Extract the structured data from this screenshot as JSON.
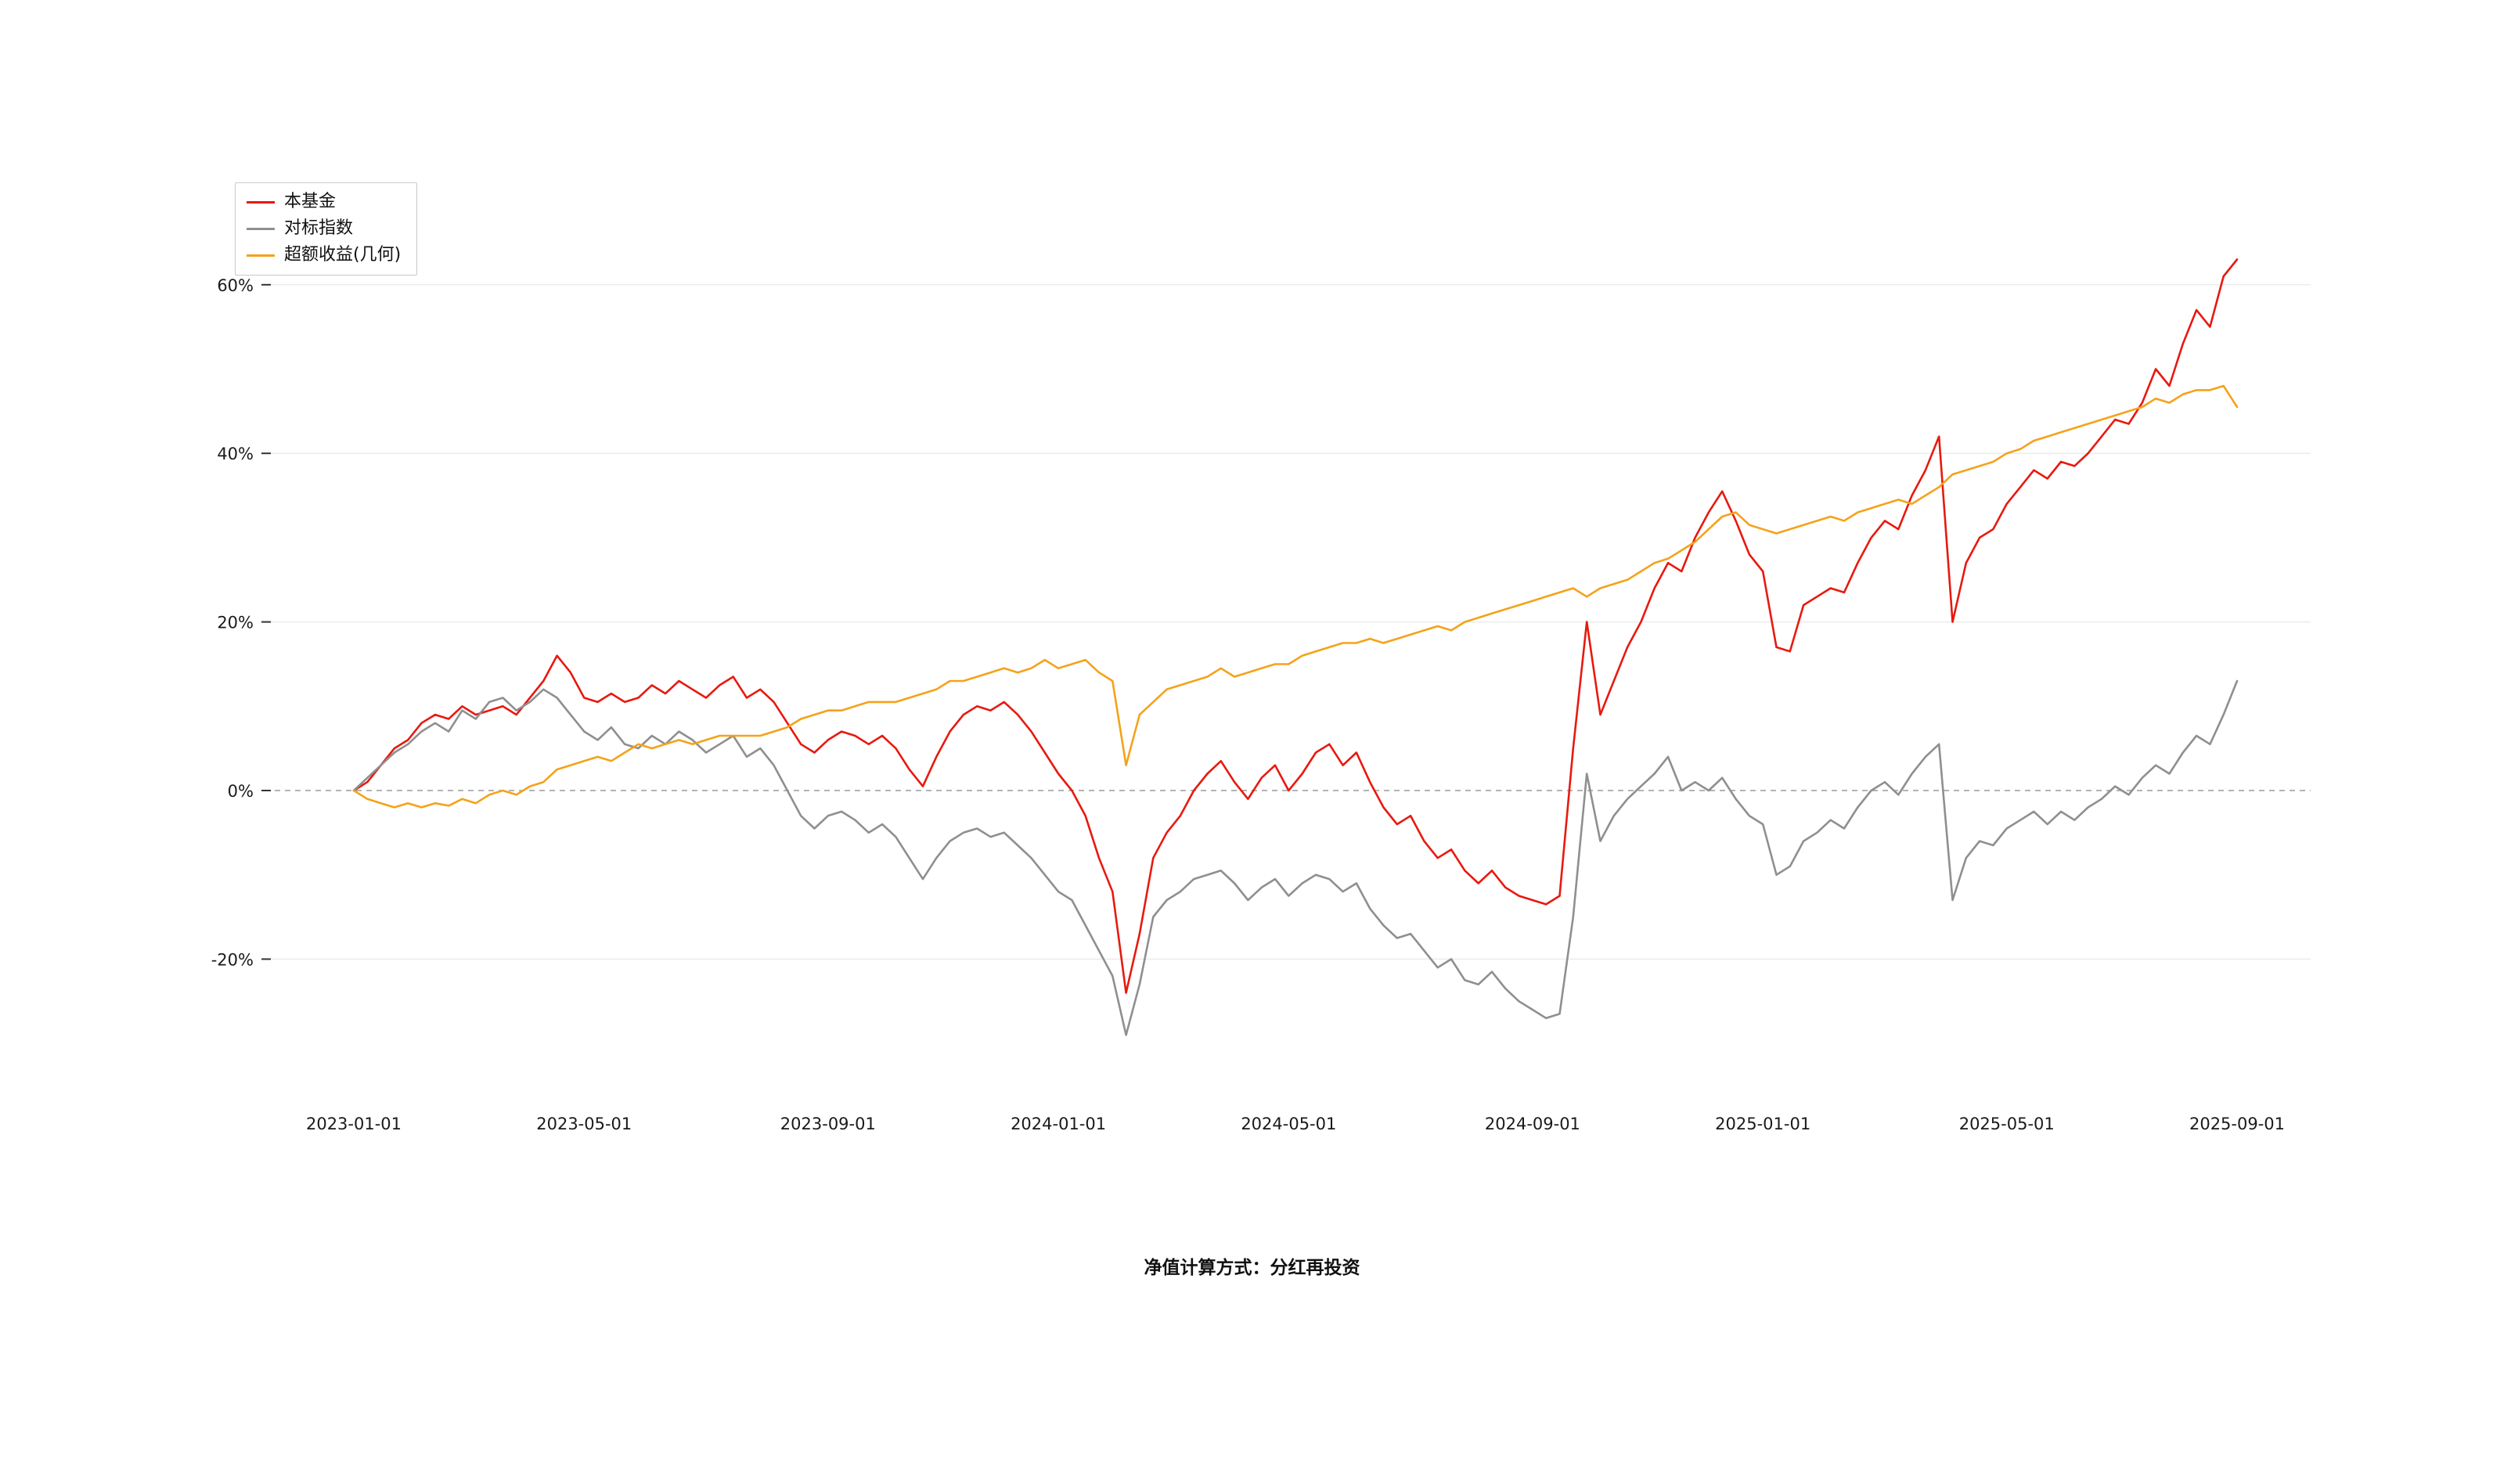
{
  "figure": {
    "footnote": "净值计算方式：分红再投资",
    "background_color": "#ffffff"
  },
  "chart_data": {
    "type": "line",
    "title": "",
    "xlabel": "",
    "ylabel": "",
    "grid": true,
    "legend_position": "top-left",
    "zero_line": {
      "value": 0,
      "style": "dashed",
      "color": "#9a9a9a"
    },
    "x_axis": {
      "tick_labels": [
        "2023-01-01",
        "2023-05-01",
        "2023-09-01",
        "2024-01-01",
        "2024-05-01",
        "2024-09-01",
        "2025-01-01",
        "2025-05-01",
        "2025-09-01"
      ],
      "tick_positions": [
        0,
        17,
        35,
        52,
        69,
        87,
        104,
        122,
        139
      ],
      "sampling": "weekly points, index 0 = 2023-01-01"
    },
    "y_axis": {
      "tick_values": [
        -20,
        0,
        20,
        40,
        60
      ],
      "tick_labels": [
        "-20%",
        "0%",
        "20%",
        "40%",
        "60%"
      ],
      "unit": "percent",
      "ylim": [
        -31,
        66
      ]
    },
    "series": [
      {
        "name": "本基金",
        "color": "#e8190f",
        "values": [
          0,
          1,
          3,
          5,
          6,
          8,
          9,
          8.5,
          10,
          9,
          9.5,
          10,
          9,
          11,
          13,
          16,
          14,
          11,
          10.5,
          11.5,
          10.5,
          11,
          12.5,
          11.5,
          13,
          12,
          11,
          12.5,
          13.5,
          11,
          12,
          10.5,
          8,
          5.5,
          4.5,
          6,
          7,
          6.5,
          5.5,
          6.5,
          5,
          2.5,
          0.5,
          4,
          7,
          9,
          10,
          9.5,
          10.5,
          9,
          7,
          4.5,
          2,
          0,
          -3,
          -8,
          -12,
          -24,
          -17,
          -8,
          -5,
          -3,
          0,
          2,
          3.5,
          1,
          -1,
          1.5,
          3,
          0,
          2,
          4.5,
          5.5,
          3,
          4.5,
          1,
          -2,
          -4,
          -3,
          -6,
          -8,
          -7,
          -9.5,
          -11,
          -9.5,
          -11.5,
          -12.5,
          -13,
          -13.5,
          -12.5,
          5,
          20,
          9,
          13,
          17,
          20,
          24,
          27,
          26,
          30,
          33,
          35.5,
          32,
          28,
          26,
          17,
          16.5,
          22,
          23,
          24,
          23.5,
          27,
          30,
          32,
          31,
          35,
          38,
          42,
          20,
          27,
          30,
          31,
          34,
          36,
          38,
          37,
          39,
          38.5,
          40,
          42,
          44,
          43.5,
          46,
          50,
          48,
          53,
          57,
          55,
          61,
          63
        ]
      },
      {
        "name": "对标指数",
        "color": "#8f8f8f",
        "values": [
          0,
          1.5,
          3,
          4.5,
          5.5,
          7,
          8,
          7,
          9.5,
          8.5,
          10.5,
          11,
          9.5,
          10.5,
          12,
          11,
          9,
          7,
          6,
          7.5,
          5.5,
          5,
          6.5,
          5.5,
          7,
          6,
          4.5,
          5.5,
          6.5,
          4,
          5,
          3,
          0,
          -3,
          -4.5,
          -3,
          -2.5,
          -3.5,
          -5,
          -4,
          -5.5,
          -8,
          -10.5,
          -8,
          -6,
          -5,
          -4.5,
          -5.5,
          -5,
          -6.5,
          -8,
          -10,
          -12,
          -13,
          -16,
          -19,
          -22,
          -29,
          -23,
          -15,
          -13,
          -12,
          -10.5,
          -10,
          -9.5,
          -11,
          -13,
          -11.5,
          -10.5,
          -12.5,
          -11,
          -10,
          -10.5,
          -12,
          -11,
          -14,
          -16,
          -17.5,
          -17,
          -19,
          -21,
          -20,
          -22.5,
          -23,
          -21.5,
          -23.5,
          -25,
          -26,
          -27,
          -26.5,
          -15,
          2,
          -6,
          -3,
          -1,
          0.5,
          2,
          4,
          0,
          1,
          0,
          1.5,
          -1,
          -3,
          -4,
          -10,
          -9,
          -6,
          -5,
          -3.5,
          -4.5,
          -2,
          0,
          1,
          -0.5,
          2,
          4,
          5.5,
          -13,
          -8,
          -6,
          -6.5,
          -4.5,
          -3.5,
          -2.5,
          -4,
          -2.5,
          -3.5,
          -2,
          -1,
          0.5,
          -0.5,
          1.5,
          3,
          2,
          4.5,
          6.5,
          5.5,
          9,
          13
        ]
      },
      {
        "name": "超额收益(几何)",
        "color": "#f5a21b",
        "values": [
          0,
          -1,
          -1.5,
          -2,
          -1.5,
          -2,
          -1.5,
          -1.8,
          -1,
          -1.5,
          -0.5,
          0,
          -0.5,
          0.5,
          1,
          2.5,
          3,
          3.5,
          4,
          3.5,
          4.5,
          5.5,
          5,
          5.5,
          6,
          5.5,
          6,
          6.5,
          6.5,
          6.5,
          6.5,
          7,
          7.5,
          8.5,
          9,
          9.5,
          9.5,
          10,
          10.5,
          10.5,
          10.5,
          11,
          11.5,
          12,
          13,
          13,
          13.5,
          14,
          14.5,
          14,
          14.5,
          15.5,
          14.5,
          15,
          15.5,
          14,
          13,
          3,
          9,
          10.5,
          12,
          12.5,
          13,
          13.5,
          14.5,
          13.5,
          14,
          14.5,
          15,
          15,
          16,
          16.5,
          17,
          17.5,
          17.5,
          18,
          17.5,
          18,
          18.5,
          19,
          19.5,
          19,
          20,
          20.5,
          21,
          21.5,
          22,
          22.5,
          23,
          23.5,
          24,
          23,
          24,
          24.5,
          25,
          26,
          27,
          27.5,
          28.5,
          29.5,
          31,
          32.5,
          33,
          31.5,
          31,
          30.5,
          31,
          31.5,
          32,
          32.5,
          32,
          33,
          33.5,
          34,
          34.5,
          34,
          35,
          36,
          37.5,
          38,
          38.5,
          39,
          40,
          40.5,
          41.5,
          42,
          42.5,
          43,
          43.5,
          44,
          44.5,
          45,
          45.5,
          46.5,
          46,
          47,
          47.5,
          47.5,
          48,
          45.5
        ]
      }
    ]
  }
}
